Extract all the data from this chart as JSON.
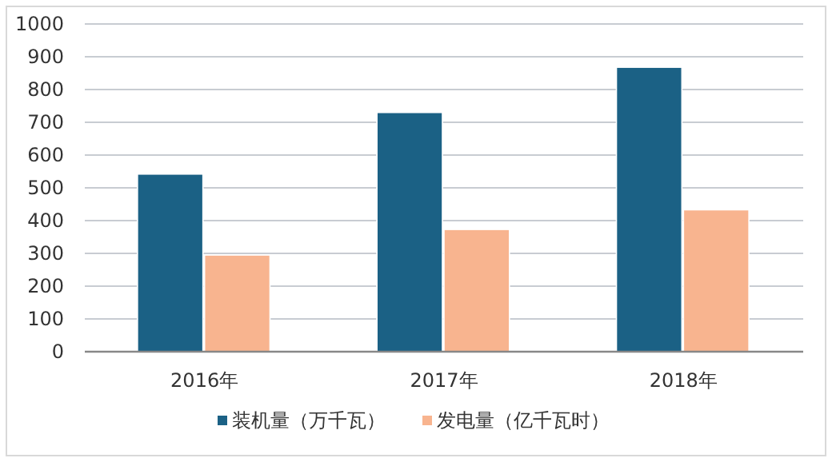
{
  "chart_data": {
    "type": "bar",
    "categories": [
      "2016年",
      "2017年",
      "2018年"
    ],
    "series": [
      {
        "name": "装机量（万千瓦）",
        "color": "#1b6185",
        "values": [
          542,
          730,
          868
        ]
      },
      {
        "name": "发电量（亿千瓦时）",
        "color": "#f8b48f",
        "values": [
          295,
          373,
          433
        ]
      }
    ],
    "ylim": [
      0,
      1000
    ],
    "yticks": [
      0,
      100,
      200,
      300,
      400,
      500,
      600,
      700,
      800,
      900,
      1000
    ],
    "grid": "y",
    "legend": "bottom"
  }
}
